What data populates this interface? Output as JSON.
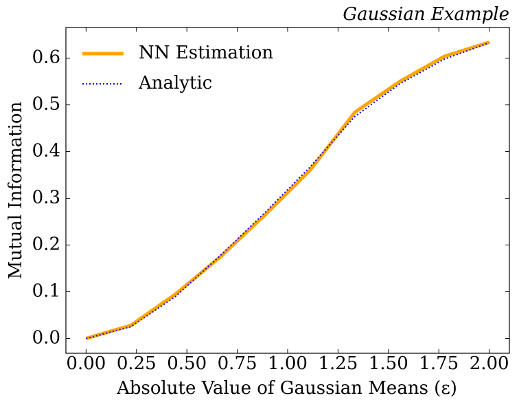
{
  "chart_data": {
    "type": "line",
    "title": "Gaussian Example",
    "x_label": "Absolute Value of Gaussian Means (ε)",
    "y_label": "Mutual Information",
    "x": [
      0,
      0.222,
      0.444,
      0.667,
      0.889,
      1.111,
      1.333,
      1.556,
      1.778,
      2.0
    ],
    "series": [
      {
        "name": "NN Estimation",
        "color": "#ffa500",
        "style": "solid",
        "values": [
          0.0,
          0.028,
          0.095,
          0.175,
          0.265,
          0.36,
          0.484,
          0.55,
          0.604,
          0.634
        ]
      },
      {
        "name": "Analytic",
        "color": "#0000ff",
        "style": "dotted",
        "values": [
          0.0,
          0.025,
          0.09,
          0.178,
          0.27,
          0.367,
          0.475,
          0.545,
          0.598,
          0.633
        ]
      }
    ],
    "xlim": [
      -0.1,
      2.1
    ],
    "xticks": [
      {
        "value": 0,
        "label": "0.00"
      },
      0.25,
      {
        "value": 0.5,
        "label": "0.50"
      },
      0.75,
      {
        "value": 1,
        "label": "1.00"
      },
      1.25,
      {
        "value": 1.5,
        "label": "1.50"
      },
      1.75,
      {
        "value": 2,
        "label": "2.00"
      }
    ],
    "ylim": [
      -0.0317,
      0.6657
    ],
    "yticks": [
      {
        "value": 0,
        "label": "0.0"
      },
      0.1,
      0.2,
      0.3,
      0.4,
      0.5,
      0.6
    ],
    "legend": "upper left",
    "grid": false
  }
}
